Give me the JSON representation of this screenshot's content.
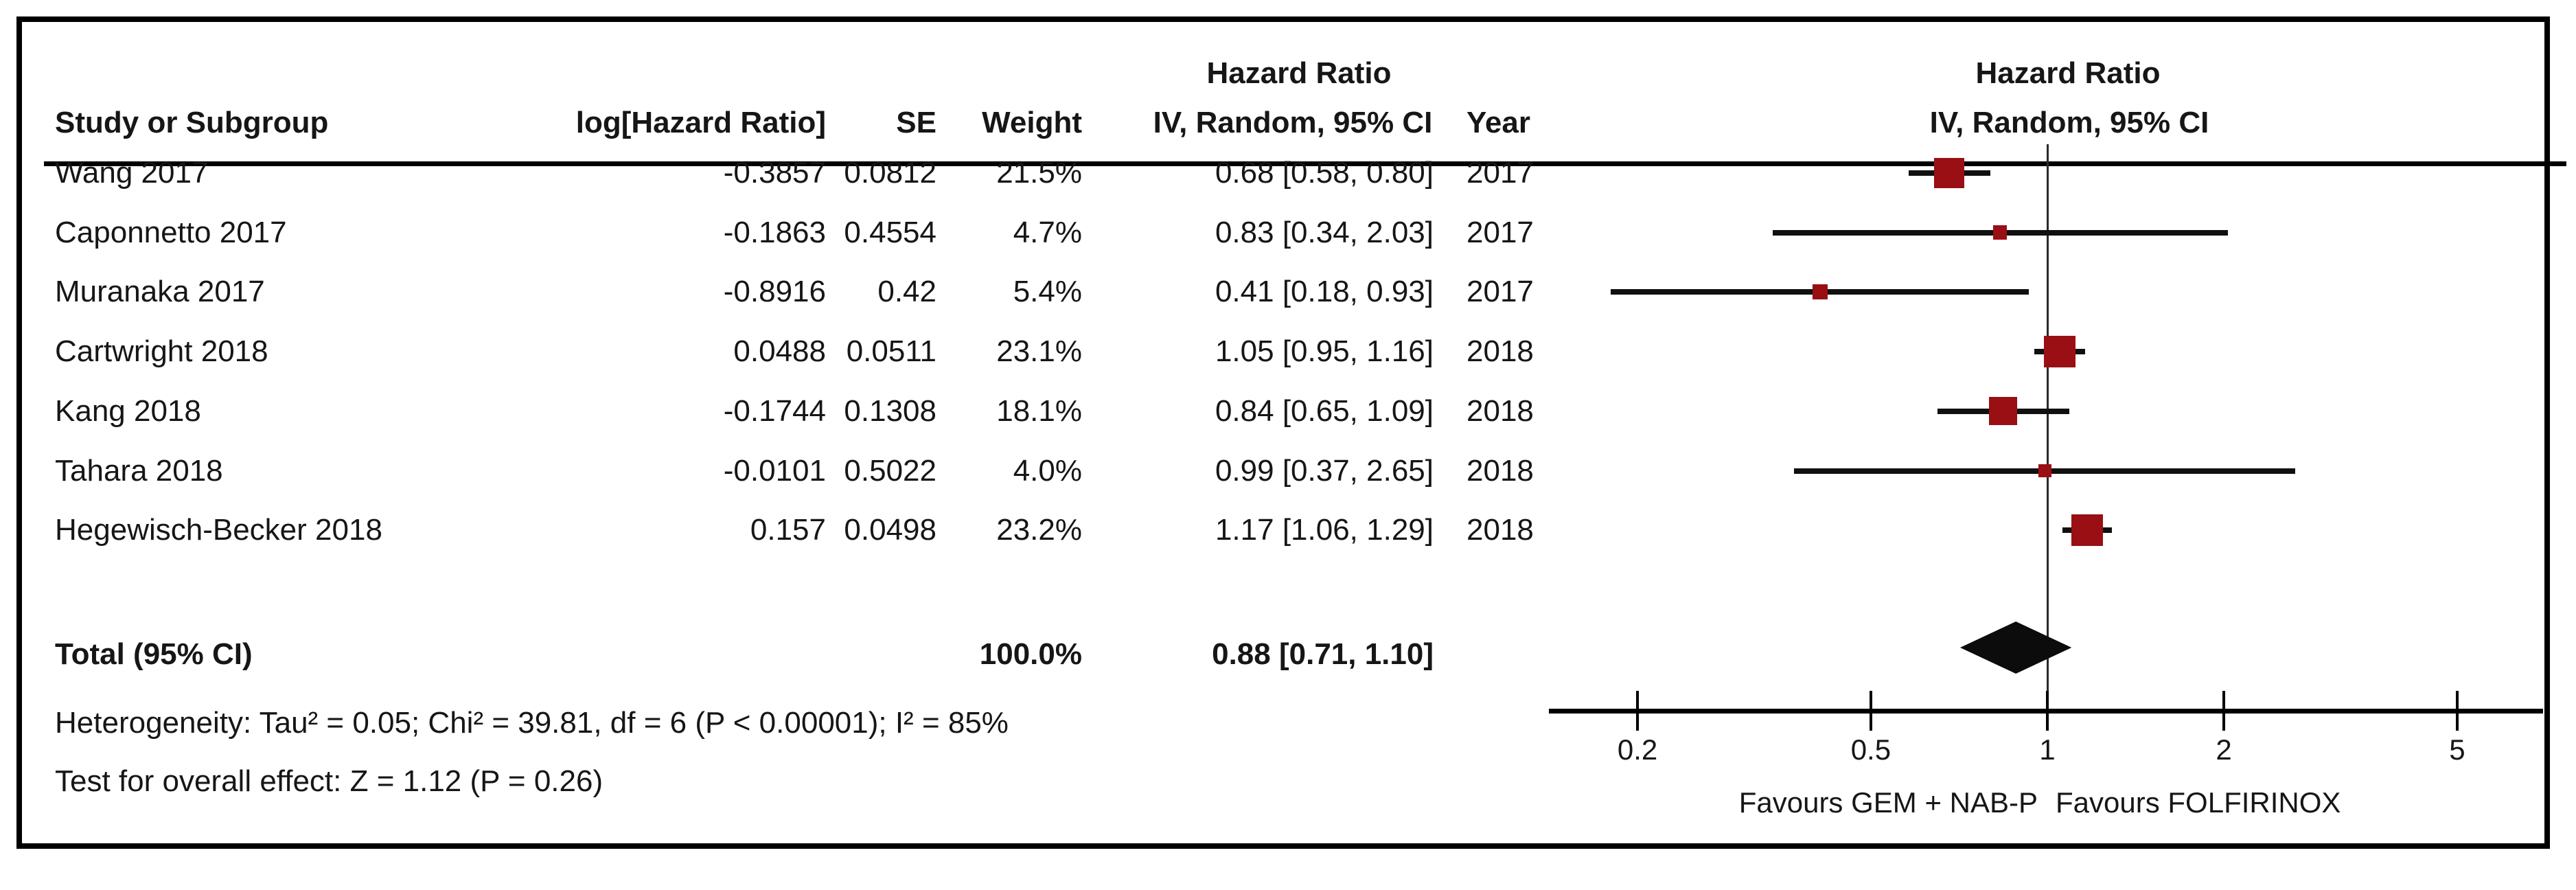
{
  "header": {
    "col_study": "Study or Subgroup",
    "col_log_hr": "log[Hazard Ratio]",
    "col_se": "SE",
    "col_weight": "Weight",
    "group_left": "Hazard Ratio",
    "col_ci": "IV, Random, 95% CI",
    "col_year": "Year",
    "group_right": "Hazard Ratio",
    "sub_right": "IV, Random, 95% CI"
  },
  "total": {
    "label": "Total (95% CI)",
    "weight": "100.0%",
    "ci_text": "0.88 [0.71, 1.10]"
  },
  "footer": {
    "heterogeneity": "Heterogeneity: Tau² = 0.05; Chi² = 39.81, df = 6 (P < 0.00001); I² = 85%",
    "overall_effect": "Test for overall effect: Z = 1.12 (P = 0.26)"
  },
  "colors": {
    "marker": "#990f13",
    "line": "#000000"
  },
  "chart_data": {
    "type": "forest-plot",
    "effect_measure": "Hazard Ratio",
    "model": "IV, Random, 95% CI",
    "x_scale": "log",
    "axis": {
      "ticks": [
        0.2,
        0.5,
        1,
        2,
        5
      ],
      "tick_labels": [
        "0.2",
        "0.5",
        "1",
        "2",
        "5"
      ],
      "favours_left": "Favours GEM + NAB-P",
      "favours_right": "Favours FOLFIRINOX",
      "null_line": 1
    },
    "studies": [
      {
        "name": "Wang 2017",
        "log_hr": "-0.3857",
        "se": "0.0812",
        "weight": "21.5%",
        "ci_text": "0.68 [0.58, 0.80]",
        "year": "2017",
        "hr": 0.68,
        "lo": 0.58,
        "hi": 0.8,
        "weight_pct": 21.5
      },
      {
        "name": "Caponnetto 2017",
        "log_hr": "-0.1863",
        "se": "0.4554",
        "weight": "4.7%",
        "ci_text": "0.83 [0.34, 2.03]",
        "year": "2017",
        "hr": 0.83,
        "lo": 0.34,
        "hi": 2.03,
        "weight_pct": 4.7
      },
      {
        "name": "Muranaka 2017",
        "log_hr": "-0.8916",
        "se": "0.42",
        "weight": "5.4%",
        "ci_text": "0.41 [0.18, 0.93]",
        "year": "2017",
        "hr": 0.41,
        "lo": 0.18,
        "hi": 0.93,
        "weight_pct": 5.4
      },
      {
        "name": "Cartwright 2018",
        "log_hr": "0.0488",
        "se": "0.0511",
        "weight": "23.1%",
        "ci_text": "1.05 [0.95, 1.16]",
        "year": "2018",
        "hr": 1.05,
        "lo": 0.95,
        "hi": 1.16,
        "weight_pct": 23.1
      },
      {
        "name": "Kang 2018",
        "log_hr": "-0.1744",
        "se": "0.1308",
        "weight": "18.1%",
        "ci_text": "0.84 [0.65, 1.09]",
        "year": "2018",
        "hr": 0.84,
        "lo": 0.65,
        "hi": 1.09,
        "weight_pct": 18.1
      },
      {
        "name": "Tahara 2018",
        "log_hr": "-0.0101",
        "se": "0.5022",
        "weight": "4.0%",
        "ci_text": "0.99 [0.37, 2.65]",
        "year": "2018",
        "hr": 0.99,
        "lo": 0.37,
        "hi": 2.65,
        "weight_pct": 4.0
      },
      {
        "name": "Hegewisch-Becker 2018",
        "log_hr": "0.157",
        "se": "0.0498",
        "weight": "23.2%",
        "ci_text": "1.17 [1.06, 1.29]",
        "year": "2018",
        "hr": 1.17,
        "lo": 1.06,
        "hi": 1.29,
        "weight_pct": 23.2
      }
    ],
    "total": {
      "hr": 0.88,
      "lo": 0.71,
      "hi": 1.1,
      "weight_pct": 100.0,
      "ci_text": "0.88 [0.71, 1.10]"
    },
    "heterogeneity": {
      "tau2": 0.05,
      "chi2": 39.81,
      "df": 6,
      "p": "< 0.00001",
      "i2": "85%"
    },
    "overall_effect": {
      "z": 1.12,
      "p": 0.26
    }
  }
}
